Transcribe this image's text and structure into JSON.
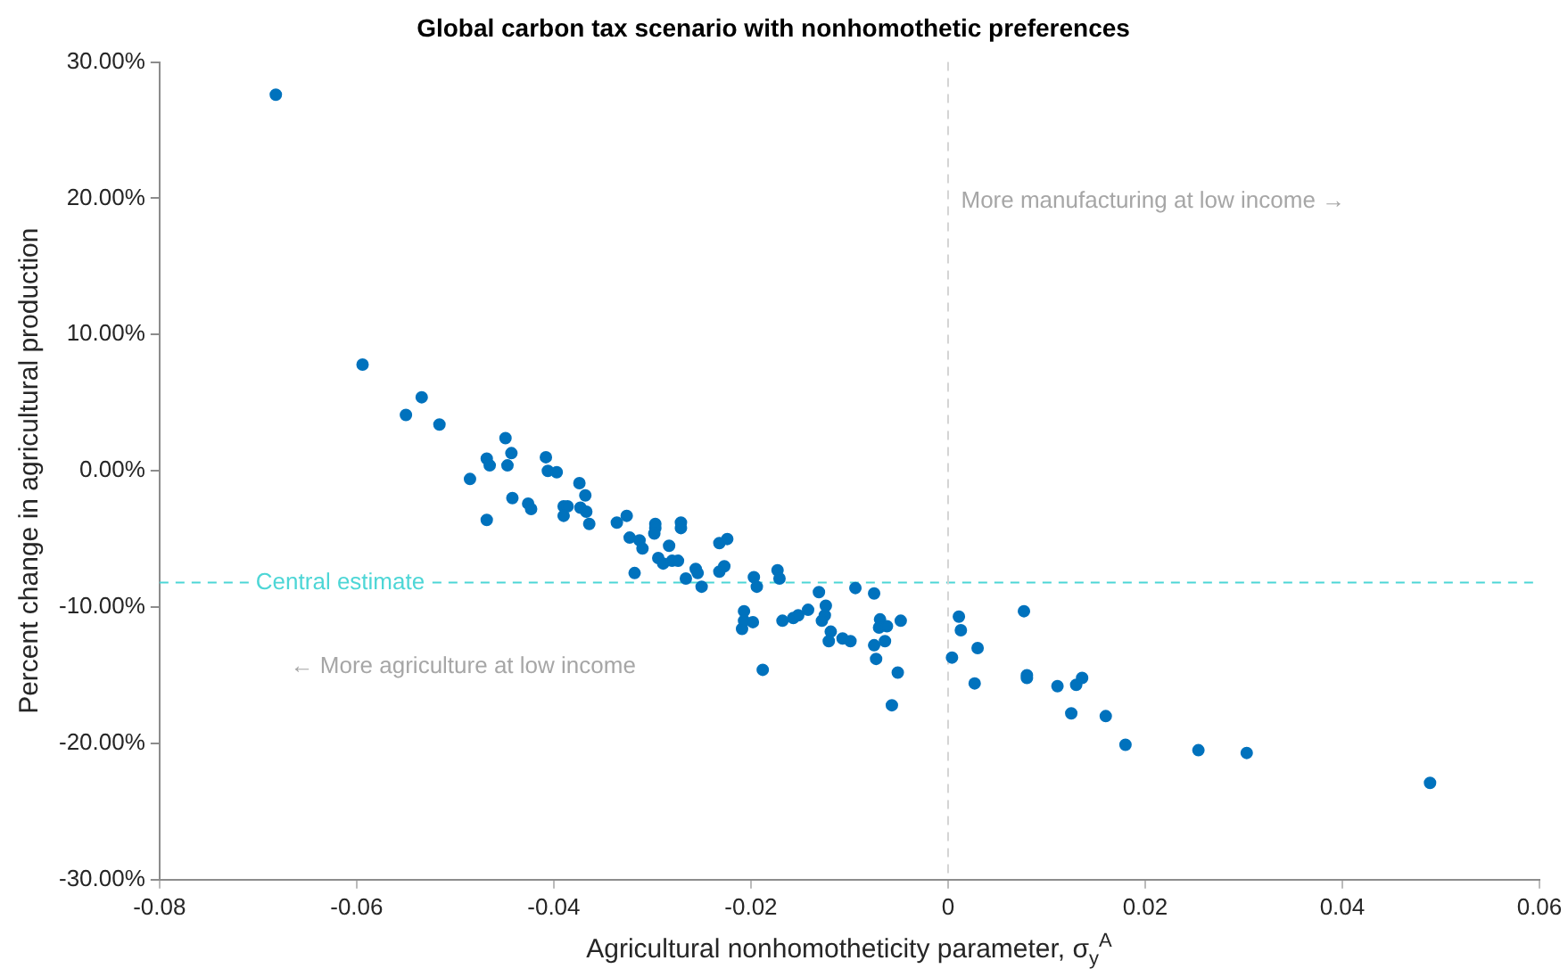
{
  "chart_data": {
    "type": "scatter",
    "title": "Global carbon tax scenario with nonhomothetic preferences",
    "xlabel": "Agricultural nonhomotheticity parameter, σ$_{y}$$^{A}$",
    "ylabel": "Percent change in agricultural production",
    "annotations": [
      "More manufacturing at low income →",
      "← More agriculture at low income"
    ],
    "xlim": [
      -0.08,
      0.06
    ],
    "xticks": [
      -0.08,
      -0.06,
      -0.04,
      -0.02,
      0,
      0.02,
      0.04,
      0.06
    ],
    "ylim": [
      -30,
      30
    ],
    "yticks": [
      {
        "value": -30,
        "label": "-30.00%"
      },
      {
        "value": -20,
        "label": "-20.00%"
      },
      {
        "value": -10,
        "label": "-10.00%"
      },
      {
        "value": 0,
        "label": "0.00%"
      },
      {
        "value": 10,
        "label": "10.00%"
      },
      {
        "value": 20,
        "label": "20.00%"
      },
      {
        "value": 30,
        "label": "30.00%"
      }
    ],
    "grid": false,
    "legend": false,
    "marker": "circle",
    "ref_lines": [
      {
        "axis": "y",
        "value": -8.2,
        "label": "Central estimate",
        "color": "#4dd6d6",
        "line_style": "dashed"
      },
      {
        "axis": "x",
        "value": 0,
        "color": "#d4d4d4",
        "line_style": "dashed"
      }
    ],
    "series": [
      {
        "color": "#0072bd",
        "x": [
          -0.0682,
          -0.0594,
          -0.055,
          -0.0534,
          -0.0516,
          -0.0485,
          -0.0468,
          -0.0465,
          -0.0468,
          -0.0449,
          -0.0443,
          -0.0447,
          -0.0442,
          -0.0426,
          -0.0423,
          -0.0408,
          -0.0406,
          -0.0397,
          -0.0374,
          -0.0368,
          -0.039,
          -0.0386,
          -0.039,
          -0.0373,
          -0.0367,
          -0.0364,
          -0.0336,
          -0.0326,
          -0.0323,
          -0.0313,
          -0.031,
          -0.0318,
          -0.0297,
          -0.0297,
          -0.0298,
          -0.0294,
          -0.0289,
          -0.0283,
          -0.028,
          -0.0274,
          -0.0271,
          -0.0271,
          -0.0266,
          -0.0256,
          -0.0254,
          -0.025,
          -0.0232,
          -0.0224,
          -0.0232,
          -0.0227,
          -0.0197,
          -0.0194,
          -0.0207,
          -0.0198,
          -0.0209,
          -0.0207,
          -0.0188,
          -0.0173,
          -0.0171,
          -0.0168,
          -0.0157,
          -0.0152,
          -0.0142,
          -0.0131,
          -0.0124,
          -0.0125,
          -0.0128,
          -0.0119,
          -0.0121,
          -0.0107,
          -0.0099,
          -0.0094,
          -0.0075,
          -0.0069,
          -0.007,
          -0.0062,
          -0.0075,
          -0.0073,
          -0.0064,
          -0.0048,
          -0.0051,
          -0.0057,
          0.0004,
          0.0011,
          0.0013,
          0.0027,
          0.003,
          0.0077,
          0.008,
          0.008,
          0.0111,
          0.013,
          0.0136,
          0.0125,
          0.016,
          0.018,
          0.0254,
          0.0303,
          0.0489
        ],
        "values": [
          27.6,
          7.8,
          4.1,
          5.4,
          3.4,
          -0.6,
          0.9,
          0.4,
          -3.6,
          2.4,
          1.3,
          0.4,
          -2.0,
          -2.4,
          -2.8,
          1.0,
          0,
          -0.1,
          -0.9,
          -1.8,
          -2.6,
          -2.6,
          -3.3,
          -2.7,
          -3.0,
          -3.9,
          -3.8,
          -3.3,
          -4.9,
          -5.1,
          -5.7,
          -7.5,
          -3.9,
          -4.2,
          -4.6,
          -6.4,
          -6.8,
          -5.5,
          -6.6,
          -6.6,
          -3.8,
          -4.2,
          -7.9,
          -7.2,
          -7.5,
          -8.5,
          -5.3,
          -5.0,
          -7.4,
          -7.0,
          -7.8,
          -8.5,
          -10.3,
          -11.1,
          -11.6,
          -11.0,
          -14.6,
          -7.3,
          -7.9,
          -11.0,
          -10.8,
          -10.6,
          -10.2,
          -8.9,
          -9.9,
          -10.6,
          -11.0,
          -11.8,
          -12.5,
          -12.3,
          -12.5,
          -8.6,
          -9.0,
          -10.9,
          -11.5,
          -11.4,
          -12.8,
          -13.8,
          -12.5,
          -11.0,
          -14.8,
          -17.2,
          -13.7,
          -10.7,
          -11.7,
          -15.6,
          -13.0,
          -10.3,
          -15.0,
          -15.2,
          -15.8,
          -15.7,
          -15.2,
          -17.8,
          -18.0,
          -20.1,
          -20.5,
          -20.7,
          -22.9
        ]
      }
    ]
  }
}
